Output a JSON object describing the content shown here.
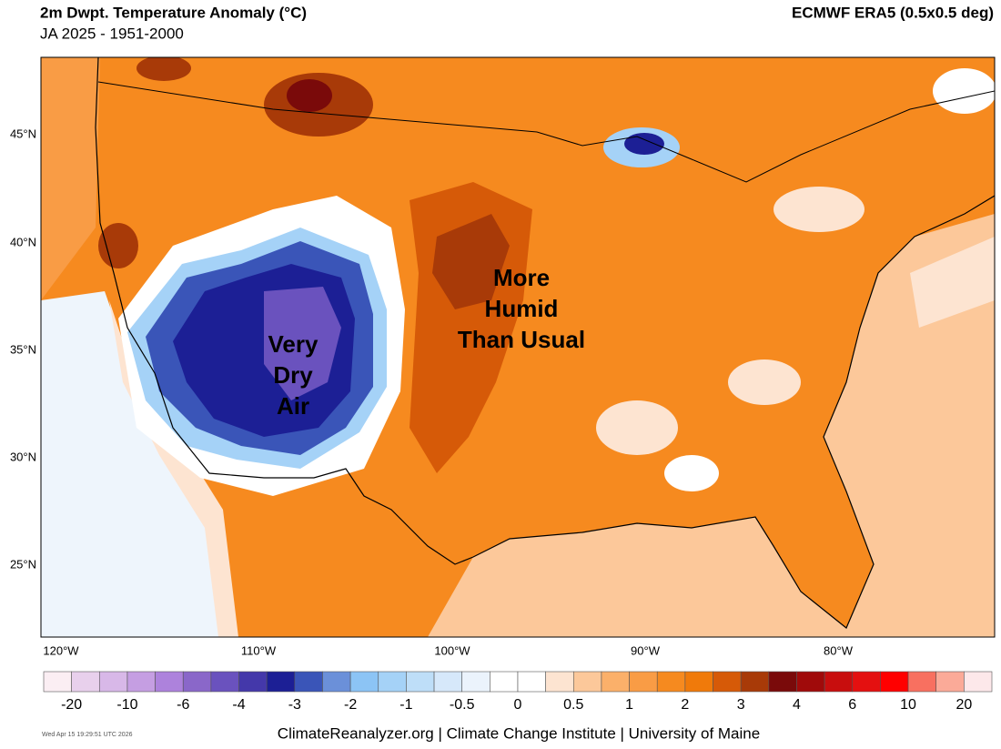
{
  "header": {
    "title": "2m Dwpt. Temperature Anomaly (°C)",
    "subtitle": "JA 2025 - 1951-2000",
    "source": "ECMWF ERA5 (0.5x0.5 deg)"
  },
  "map": {
    "lat_labels": [
      "45°N",
      "40°N",
      "35°N",
      "30°N",
      "25°N"
    ],
    "lon_labels": [
      "120°W",
      "110°W",
      "100°W",
      "90°W",
      "80°W"
    ],
    "annotations": [
      {
        "lines": [
          "Very",
          "Dry",
          "Air"
        ]
      },
      {
        "lines": [
          "More",
          "Humid",
          "Than Usual"
        ]
      }
    ]
  },
  "colorbar": {
    "labels": [
      -20,
      -10,
      -6,
      -4,
      -3,
      -2,
      -1,
      -0.5,
      0,
      0.5,
      1,
      2,
      3,
      4,
      6,
      10,
      20
    ],
    "colors": [
      "#fbeef3",
      "#e8d0ec",
      "#d8b8e8",
      "#c59ee2",
      "#ad82dc",
      "#8a67c9",
      "#6a52be",
      "#4438aa",
      "#1c1f95",
      "#3a55b8",
      "#6b90d9",
      "#8cc4f5",
      "#a5d2f7",
      "#bedef8",
      "#d6e8fa",
      "#ebf3fc",
      "#ffffff",
      "#ffffff",
      "#fde4d1",
      "#fcc89a",
      "#fbb06a",
      "#f99c45",
      "#f68a1f",
      "#f07a0a",
      "#d65a08",
      "#a83a08",
      "#7a0a0a",
      "#a00a0a",
      "#c80e0e",
      "#e41010",
      "#ff0000",
      "#f87060",
      "#fbaa98",
      "#fde8ea"
    ]
  },
  "footer": {
    "credit": "ClimateReanalyzer.org | Climate Change Institute | University of Maine",
    "timestamp": "Wed Apr 15 19:29:51 UTC 2026"
  }
}
